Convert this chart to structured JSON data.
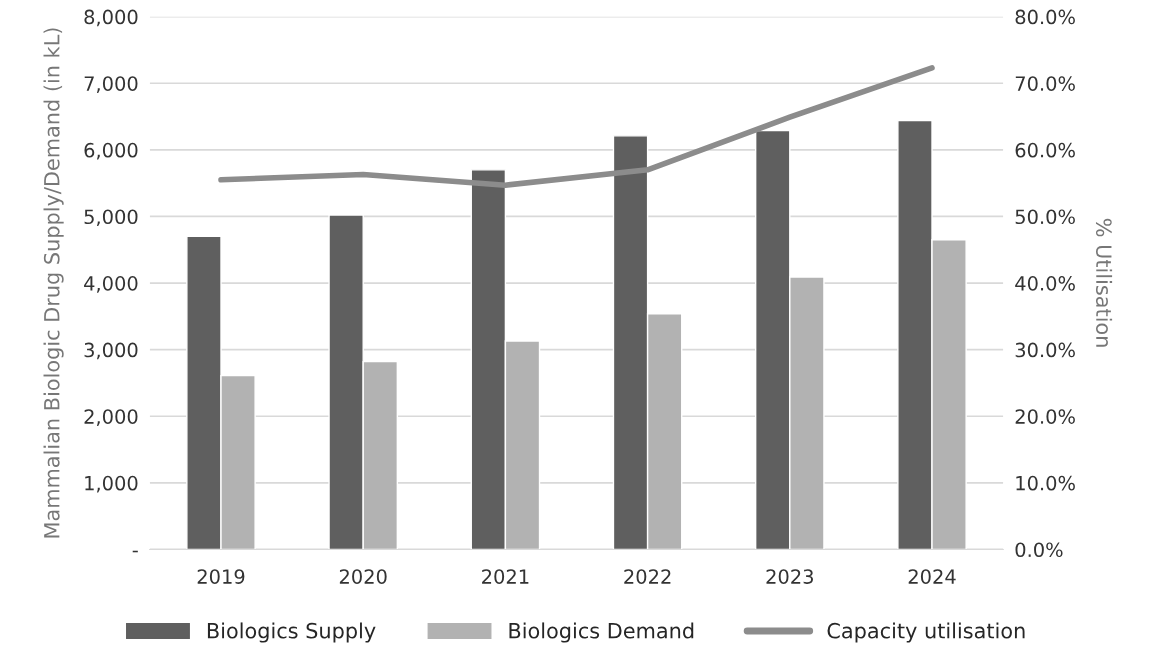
{
  "chart_data": {
    "type": "bar",
    "categories": [
      "2019",
      "2020",
      "2021",
      "2022",
      "2023",
      "2024"
    ],
    "series": [
      {
        "name": "Biologics Supply",
        "color": "#5f5f5f",
        "values": [
          4700,
          5020,
          5700,
          6210,
          6290,
          6440
        ]
      },
      {
        "name": "Biologics Demand",
        "color": "#b2b2b2",
        "values": [
          2610,
          2820,
          3130,
          3540,
          4090,
          4650
        ]
      },
      {
        "name": "Capacity utilisation",
        "type": "line",
        "axis": "y2",
        "color": "#8c8c8c",
        "values": [
          55.5,
          56.3,
          54.7,
          57.0,
          64.9,
          72.3
        ]
      }
    ],
    "ylabel": "Mammalian Biologic Drug Supply/Demand (in kL)",
    "y2label": "% Utilisation",
    "ylim": [
      0,
      8000
    ],
    "yticks": [
      {
        "value": 0,
        "label": "-"
      },
      {
        "value": 1000,
        "label": "1,000"
      },
      {
        "value": 2000,
        "label": "2,000"
      },
      {
        "value": 3000,
        "label": "3,000"
      },
      {
        "value": 4000,
        "label": "4,000"
      },
      {
        "value": 5000,
        "label": "5,000"
      },
      {
        "value": 6000,
        "label": "6,000"
      },
      {
        "value": 7000,
        "label": "7,000"
      },
      {
        "value": 8000,
        "label": "8,000"
      }
    ],
    "y2lim": [
      0,
      80
    ],
    "y2ticks": [
      {
        "value": 0,
        "label": "0.0%"
      },
      {
        "value": 10,
        "label": "10.0%"
      },
      {
        "value": 20,
        "label": "20.0%"
      },
      {
        "value": 30,
        "label": "30.0%"
      },
      {
        "value": 40,
        "label": "40.0%"
      },
      {
        "value": 50,
        "label": "50.0%"
      },
      {
        "value": 60,
        "label": "60.0%"
      },
      {
        "value": 70,
        "label": "70.0%"
      },
      {
        "value": 80,
        "label": "80.0%"
      }
    ],
    "grid": "y",
    "legend": "bottom",
    "marker": "none",
    "line_style": "solid"
  }
}
